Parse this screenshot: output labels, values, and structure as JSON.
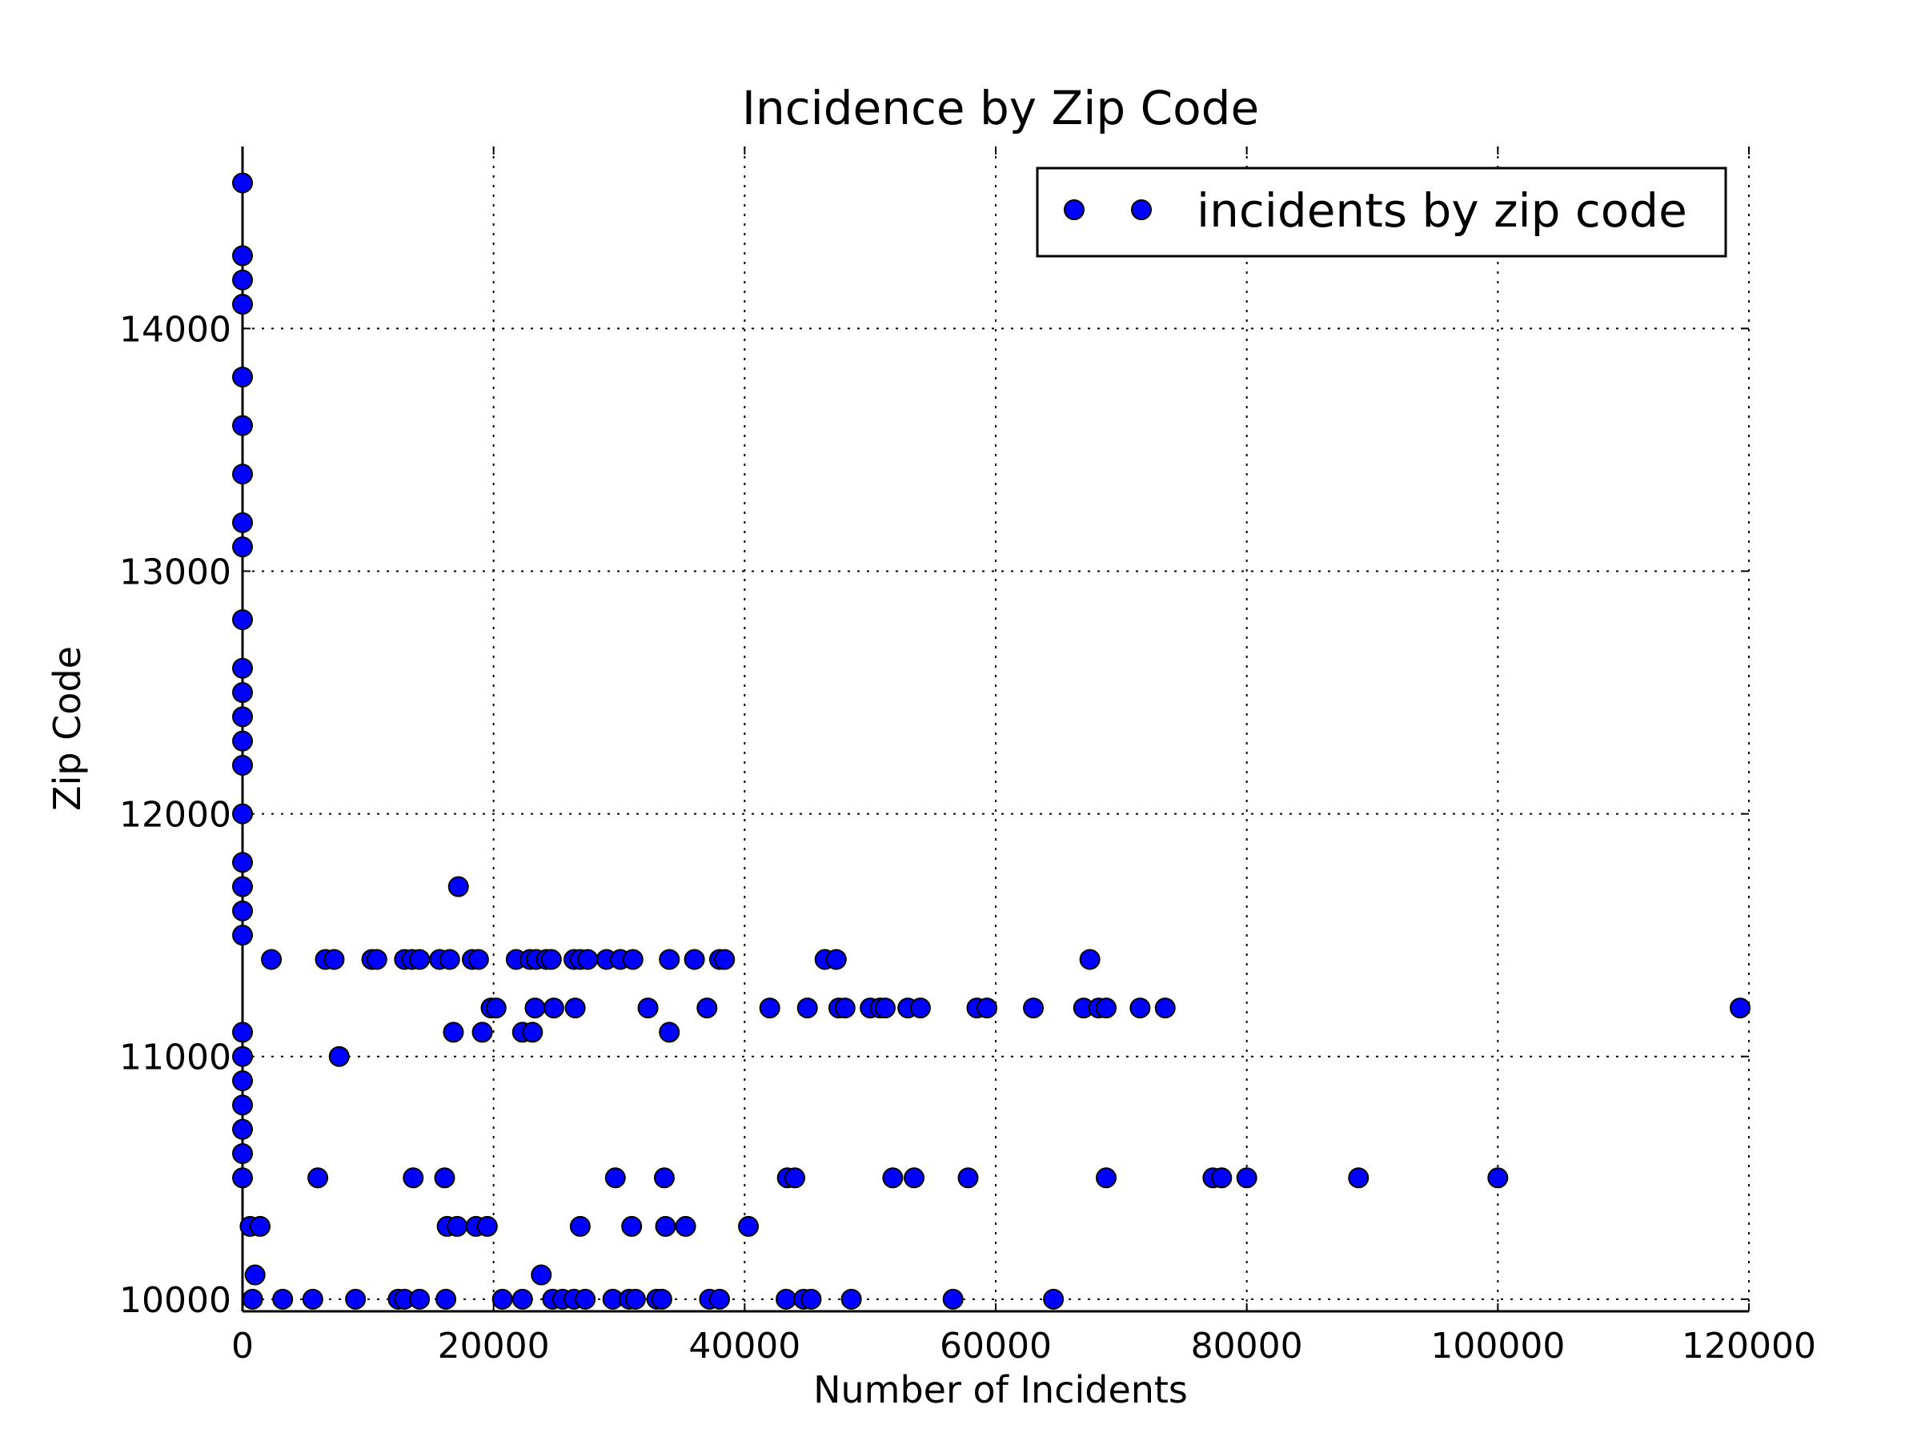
{
  "chart_data": {
    "type": "scatter",
    "title": "Incidence by Zip Code",
    "xlabel": "Number of Incidents",
    "ylabel": "Zip Code",
    "xlim": [
      0,
      120000
    ],
    "ylim": [
      9950,
      14750
    ],
    "x_ticks": [
      "0",
      "20000",
      "40000",
      "60000",
      "80000",
      "100000",
      "120000"
    ],
    "y_ticks": [
      "10000",
      "11000",
      "12000",
      "13000",
      "14000"
    ],
    "grid": true,
    "legend_position": "top-right",
    "marker_color": "#0000ff",
    "series": [
      {
        "name": "incidents by zip code",
        "points": [
          [
            0,
            14600
          ],
          [
            0,
            14300
          ],
          [
            0,
            14200
          ],
          [
            0,
            14100
          ],
          [
            0,
            13800
          ],
          [
            0,
            13600
          ],
          [
            0,
            13400
          ],
          [
            0,
            13200
          ],
          [
            0,
            13100
          ],
          [
            0,
            12800
          ],
          [
            0,
            12600
          ],
          [
            0,
            12500
          ],
          [
            0,
            12400
          ],
          [
            0,
            12300
          ],
          [
            0,
            12200
          ],
          [
            0,
            12000
          ],
          [
            0,
            11800
          ],
          [
            0,
            11700
          ],
          [
            0,
            11600
          ],
          [
            0,
            11500
          ],
          [
            0,
            11100
          ],
          [
            0,
            11000
          ],
          [
            0,
            10900
          ],
          [
            0,
            10800
          ],
          [
            0,
            10700
          ],
          [
            0,
            10600
          ],
          [
            0,
            10500
          ],
          [
            600,
            10300
          ],
          [
            1400,
            10300
          ],
          [
            1000,
            10100
          ],
          [
            800,
            10000
          ],
          [
            3200,
            10000
          ],
          [
            5600,
            10000
          ],
          [
            9000,
            10000
          ],
          [
            12400,
            10000
          ],
          [
            12900,
            10000
          ],
          [
            14100,
            10000
          ],
          [
            16200,
            10000
          ],
          [
            20700,
            10000
          ],
          [
            22300,
            10000
          ],
          [
            24700,
            10000
          ],
          [
            25500,
            10000
          ],
          [
            26400,
            10000
          ],
          [
            27300,
            10000
          ],
          [
            29500,
            10000
          ],
          [
            30800,
            10000
          ],
          [
            31300,
            10000
          ],
          [
            33000,
            10000
          ],
          [
            33400,
            10000
          ],
          [
            37200,
            10000
          ],
          [
            38000,
            10000
          ],
          [
            43300,
            10000
          ],
          [
            44700,
            10000
          ],
          [
            45300,
            10000
          ],
          [
            48500,
            10000
          ],
          [
            56600,
            10000
          ],
          [
            64600,
            10000
          ],
          [
            23800,
            10100
          ],
          [
            16300,
            10300
          ],
          [
            17100,
            10300
          ],
          [
            18600,
            10300
          ],
          [
            19500,
            10300
          ],
          [
            26900,
            10300
          ],
          [
            31000,
            10300
          ],
          [
            33700,
            10300
          ],
          [
            35300,
            10300
          ],
          [
            40300,
            10300
          ],
          [
            6000,
            10500
          ],
          [
            13600,
            10500
          ],
          [
            16100,
            10500
          ],
          [
            29700,
            10500
          ],
          [
            33600,
            10500
          ],
          [
            43400,
            10500
          ],
          [
            44000,
            10500
          ],
          [
            51800,
            10500
          ],
          [
            53500,
            10500
          ],
          [
            57800,
            10500
          ],
          [
            68800,
            10500
          ],
          [
            77300,
            10500
          ],
          [
            78000,
            10500
          ],
          [
            80000,
            10500
          ],
          [
            88900,
            10500
          ],
          [
            100000,
            10500
          ],
          [
            7700,
            11000
          ],
          [
            16800,
            11100
          ],
          [
            19100,
            11100
          ],
          [
            22300,
            11100
          ],
          [
            23100,
            11100
          ],
          [
            34000,
            11100
          ],
          [
            19800,
            11200
          ],
          [
            20200,
            11200
          ],
          [
            23300,
            11200
          ],
          [
            24800,
            11200
          ],
          [
            26500,
            11200
          ],
          [
            32300,
            11200
          ],
          [
            37000,
            11200
          ],
          [
            42000,
            11200
          ],
          [
            45000,
            11200
          ],
          [
            47500,
            11200
          ],
          [
            48000,
            11200
          ],
          [
            50000,
            11200
          ],
          [
            50800,
            11200
          ],
          [
            51200,
            11200
          ],
          [
            53000,
            11200
          ],
          [
            54000,
            11200
          ],
          [
            58500,
            11200
          ],
          [
            59300,
            11200
          ],
          [
            63000,
            11200
          ],
          [
            67000,
            11200
          ],
          [
            68200,
            11200
          ],
          [
            68800,
            11200
          ],
          [
            71500,
            11200
          ],
          [
            73500,
            11200
          ],
          [
            119300,
            11200
          ],
          [
            2300,
            11400
          ],
          [
            6600,
            11400
          ],
          [
            7300,
            11400
          ],
          [
            10300,
            11400
          ],
          [
            10700,
            11400
          ],
          [
            12900,
            11400
          ],
          [
            13500,
            11400
          ],
          [
            14100,
            11400
          ],
          [
            15700,
            11400
          ],
          [
            16500,
            11400
          ],
          [
            18300,
            11400
          ],
          [
            18800,
            11400
          ],
          [
            21800,
            11400
          ],
          [
            22900,
            11400
          ],
          [
            23400,
            11400
          ],
          [
            24200,
            11400
          ],
          [
            24600,
            11400
          ],
          [
            26400,
            11400
          ],
          [
            26900,
            11400
          ],
          [
            27500,
            11400
          ],
          [
            29000,
            11400
          ],
          [
            30100,
            11400
          ],
          [
            31100,
            11400
          ],
          [
            34000,
            11400
          ],
          [
            36000,
            11400
          ],
          [
            38000,
            11400
          ],
          [
            38400,
            11400
          ],
          [
            46400,
            11400
          ],
          [
            47300,
            11400
          ],
          [
            67500,
            11400
          ],
          [
            17200,
            11700
          ]
        ]
      }
    ]
  }
}
